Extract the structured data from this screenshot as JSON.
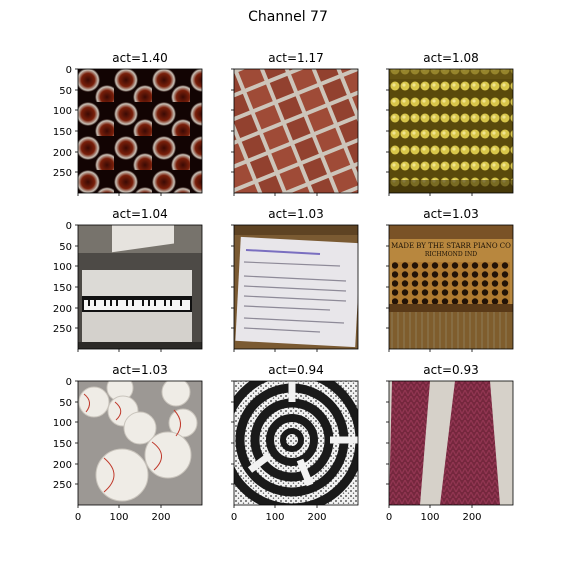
{
  "figure": {
    "title": "Channel 77"
  },
  "axis": {
    "y_ticks": [
      "0",
      "50",
      "100",
      "150",
      "200",
      "250"
    ],
    "x_ticks": [
      "0",
      "100",
      "200"
    ]
  },
  "panels": [
    {
      "title": "act=1.40",
      "content": "wine-bottles"
    },
    {
      "title": "act=1.17",
      "content": "brick-wall"
    },
    {
      "title": "act=1.08",
      "content": "corn-cobs"
    },
    {
      "title": "act=1.04",
      "content": "piano"
    },
    {
      "title": "act=1.03",
      "content": "information-sign"
    },
    {
      "title": "act=1.03",
      "content": "piano-interior"
    },
    {
      "title": "act=1.03",
      "content": "baseballs"
    },
    {
      "title": "act=0.94",
      "content": "maze"
    },
    {
      "title": "act=0.93",
      "content": "knitted-fabric"
    }
  ],
  "piano_plate": {
    "brand": "MADE BY THE STARR PIANO CO",
    "city": "RICHMOND IND"
  }
}
